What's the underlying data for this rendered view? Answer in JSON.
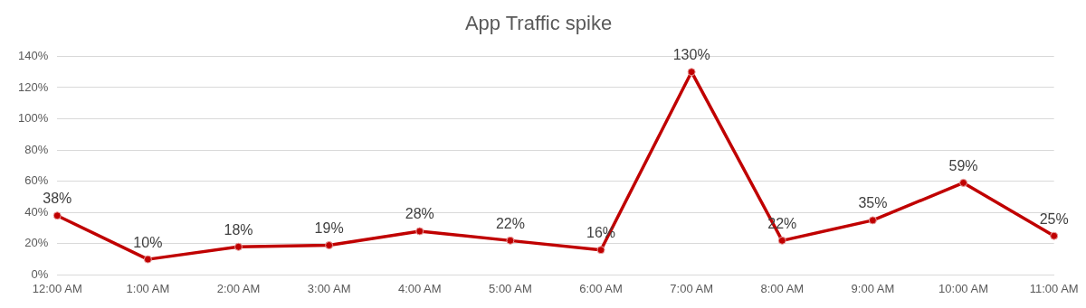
{
  "chart_data": {
    "type": "line",
    "title": "App Traffic spike",
    "categories": [
      "12:00 AM",
      "1:00 AM",
      "2:00 AM",
      "3:00 AM",
      "4:00 AM",
      "5:00 AM",
      "6:00 AM",
      "7:00 AM",
      "8:00 AM",
      "9:00 AM",
      "10:00 AM",
      "11:00 AM"
    ],
    "series": [
      {
        "color": "#c00000",
        "values": [
          38,
          10,
          18,
          19,
          28,
          22,
          16,
          130,
          22,
          35,
          59,
          25
        ],
        "value_labels": [
          "38%",
          "10%",
          "18%",
          "19%",
          "28%",
          "22%",
          "16%",
          "130%",
          "22%",
          "35%",
          "59%",
          "25%"
        ]
      }
    ],
    "ylim": [
      0,
      140
    ],
    "yticks": [
      {
        "value": 0,
        "label": "0%"
      },
      {
        "value": 20,
        "label": "20%"
      },
      {
        "value": 40,
        "label": "40%"
      },
      {
        "value": 60,
        "label": "60%"
      },
      {
        "value": 80,
        "label": "80%"
      },
      {
        "value": 100,
        "label": "100%"
      },
      {
        "value": 120,
        "label": "120%"
      },
      {
        "value": 140,
        "label": "140%"
      }
    ],
    "grid": "y",
    "legend": false,
    "marker": "circle",
    "line_style": "solid"
  }
}
